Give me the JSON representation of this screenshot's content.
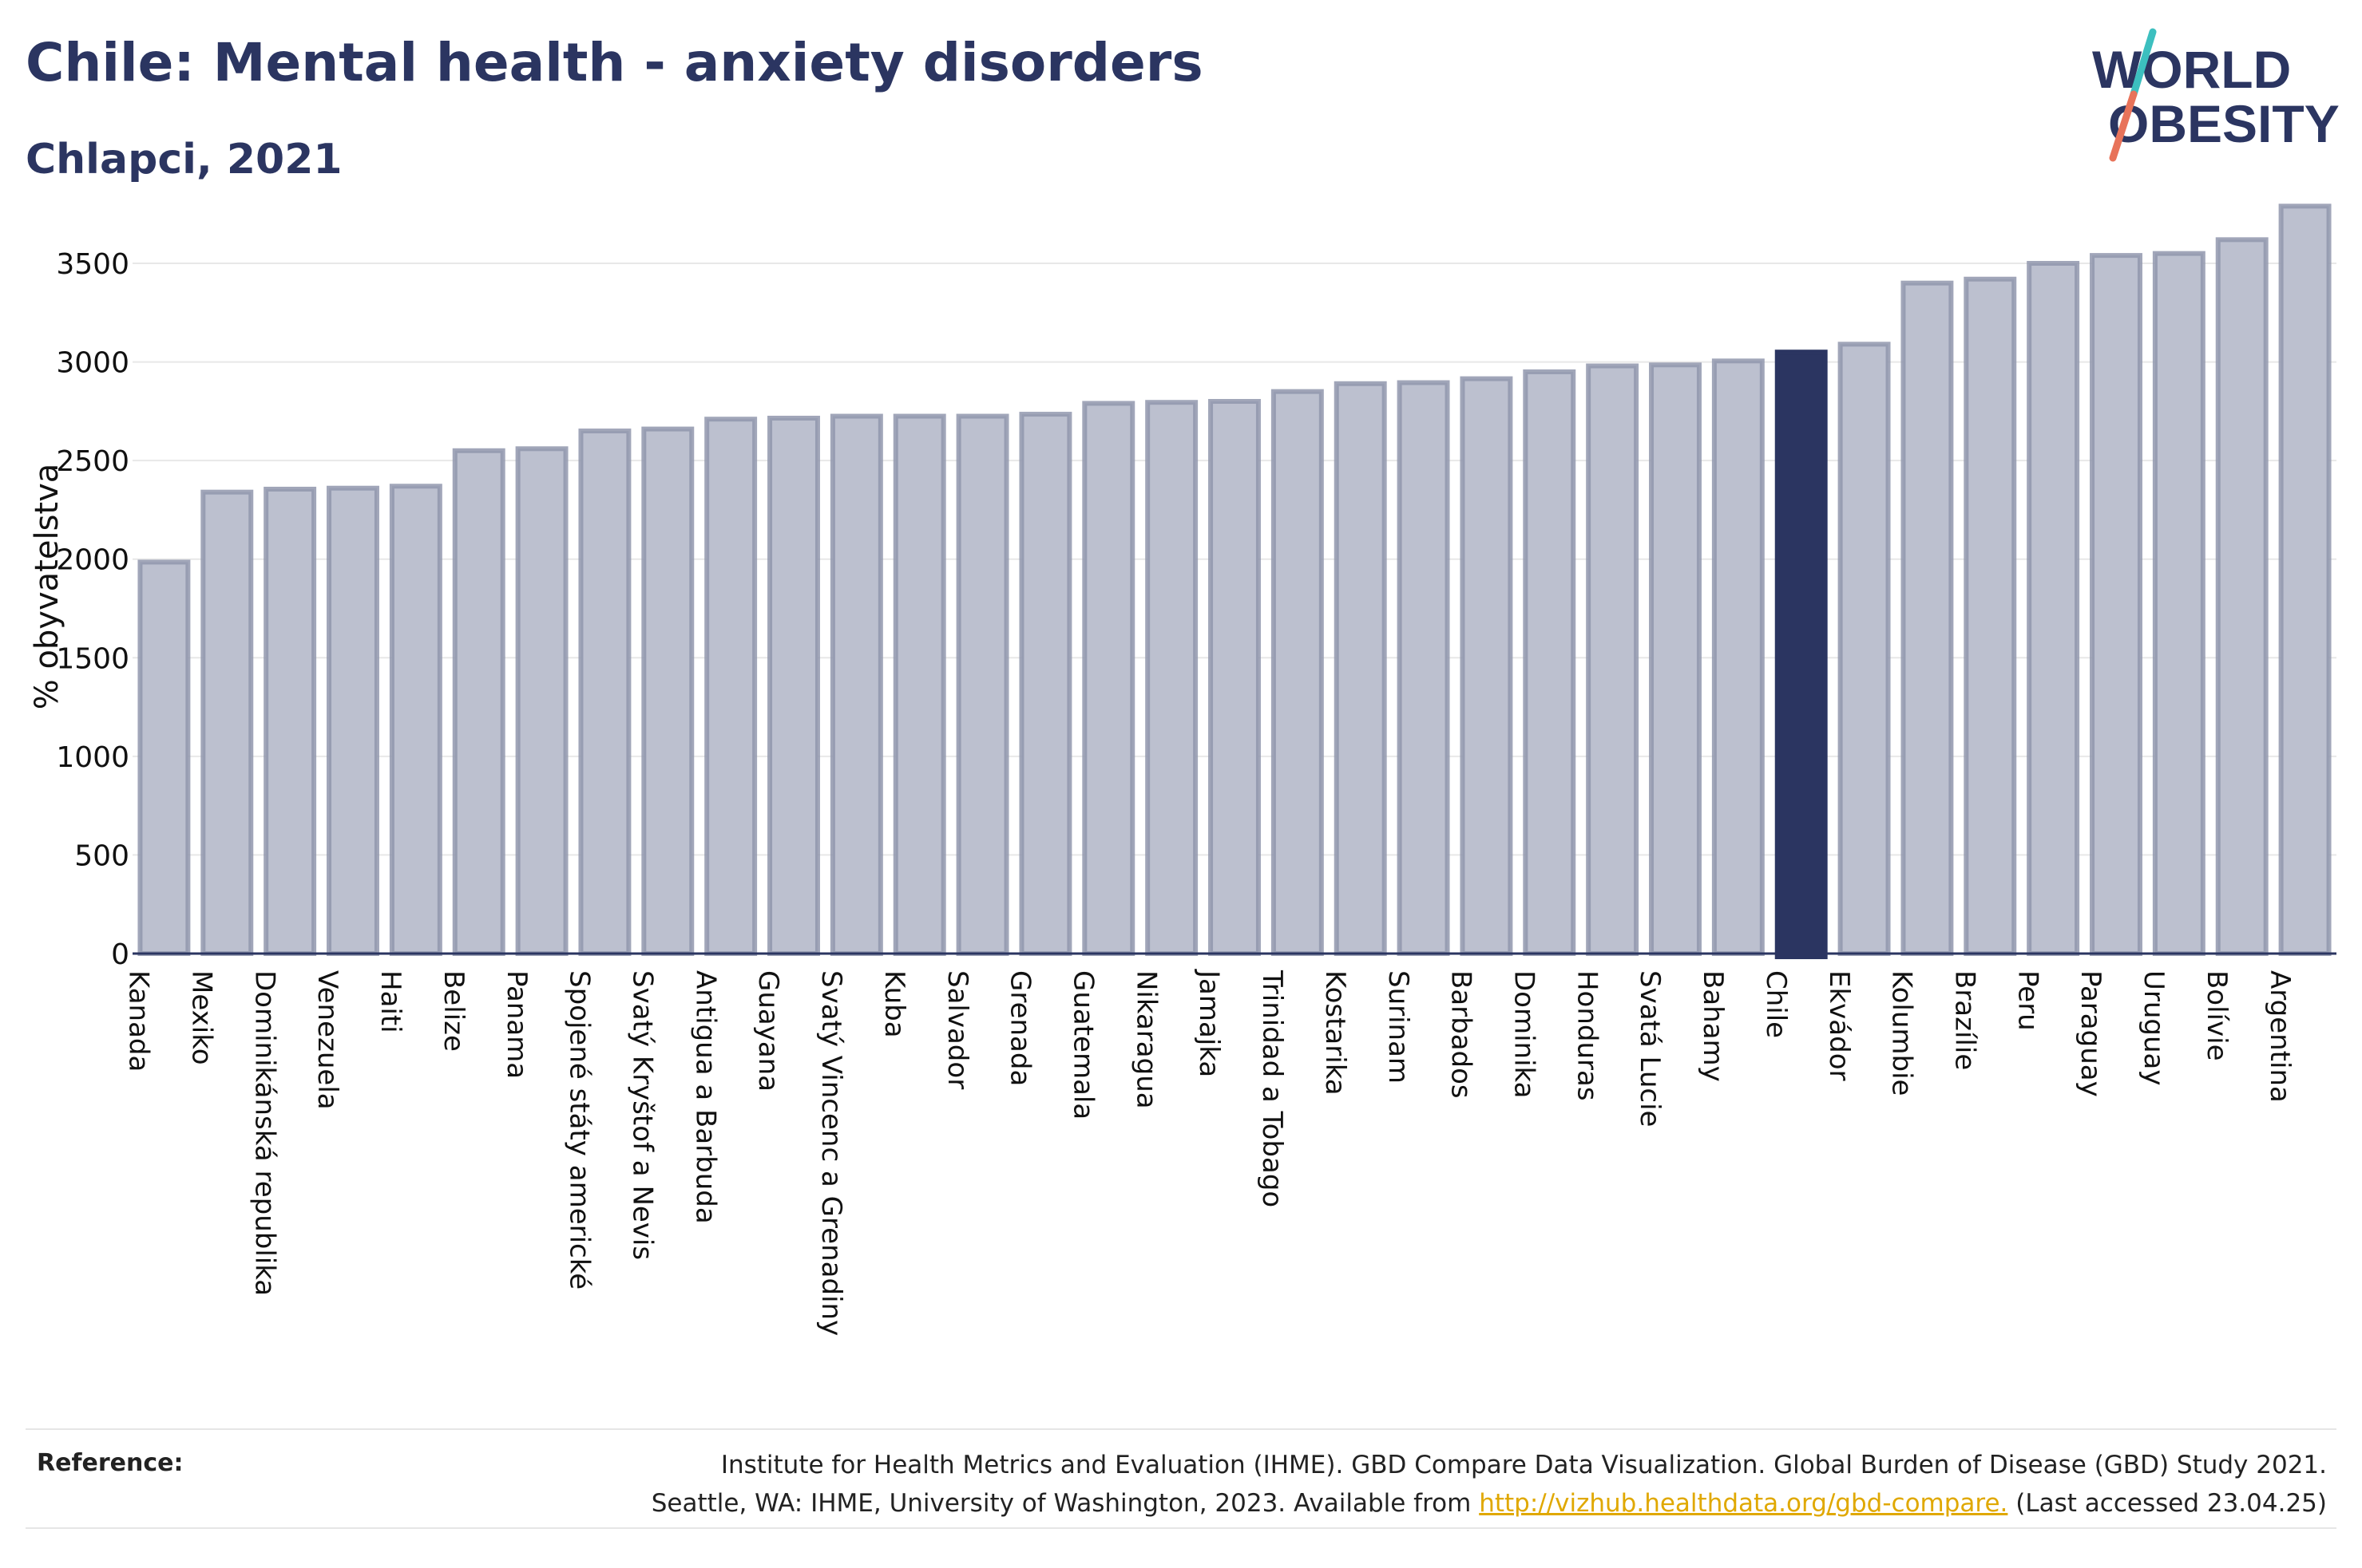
{
  "header": {
    "title": "Chile: Mental health - anxiety disorders",
    "subtitle": "Chlapci, 2021"
  },
  "logo": {
    "line1": "WORLD",
    "line2": "OBESITY",
    "accent_teal": "#3cbfbf",
    "accent_coral": "#e8735a"
  },
  "colors": {
    "bar": "#bcc0cf",
    "bar_stroke": "#9196ad",
    "highlight": "#2b3561",
    "axis": "#2b3561",
    "grid": "#e8e8e8"
  },
  "chart_data": {
    "type": "bar",
    "ylabel": "% obyvatelstva",
    "ylim": [
      0,
      3800
    ],
    "yticks": [
      0,
      500,
      1000,
      1500,
      2000,
      2500,
      3000,
      3500
    ],
    "highlight": "Chile",
    "grid": true,
    "categories": [
      "Kanada",
      "Mexiko",
      "Dominikánská republika",
      "Venezuela",
      "Haiti",
      "Belize",
      "Panama",
      "Spojené státy americké",
      "Svatý Kryštof a Nevis",
      "Antigua a Barbuda",
      "Guayana",
      "Svatý Vincenc a Grenadiny",
      "Kuba",
      "Salvador",
      "Grenada",
      "Guatemala",
      "Nikaragua",
      "Jamajka",
      "Trinidad a Tobago",
      "Kostarika",
      "Surinam",
      "Barbados",
      "Dominika",
      "Honduras",
      "Svatá Lucie",
      "Bahamy",
      "Chile",
      "Ekvádor",
      "Kolumbie",
      "Brazílie",
      "Peru",
      "Paraguay",
      "Uruguay",
      "Bolívie",
      "Argentina"
    ],
    "values": [
      1985,
      2340,
      2355,
      2360,
      2370,
      2550,
      2560,
      2650,
      2660,
      2710,
      2715,
      2725,
      2725,
      2725,
      2735,
      2790,
      2795,
      2800,
      2850,
      2890,
      2895,
      2915,
      2950,
      2980,
      2985,
      3005,
      3050,
      3090,
      3400,
      3420,
      3500,
      3540,
      3550,
      3620,
      3790
    ]
  },
  "footer": {
    "reference_label": "Reference:",
    "line1": "Institute for Health Metrics and Evaluation (IHME). GBD Compare Data Visualization. Global Burden of Disease (GBD) Study 2021.",
    "line2_before": "Seattle, WA: IHME, University of Washington, 2023. Available from ",
    "link": "http://vizhub.healthdata.org/gbd-compare.",
    "line2_after": " (Last accessed 23.04.25)"
  }
}
